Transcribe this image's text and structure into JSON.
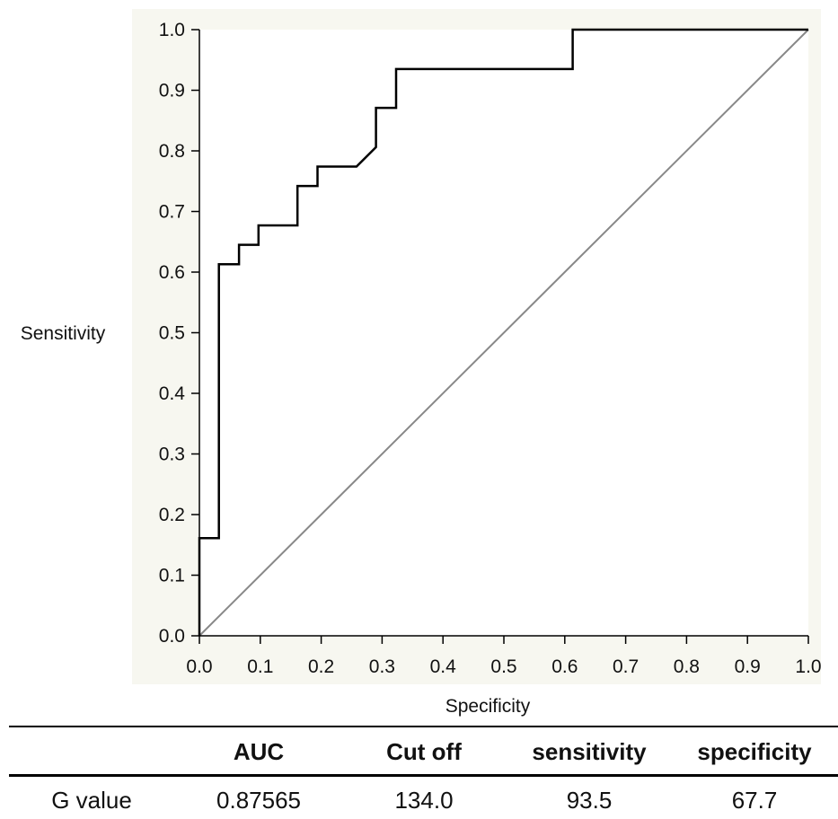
{
  "chart_data": {
    "type": "line",
    "title": "",
    "xlabel": "Specificity",
    "ylabel": "Sensitivity",
    "xlim": [
      0.0,
      1.0
    ],
    "ylim": [
      0.0,
      1.0
    ],
    "x_ticks": [
      "0.0",
      "0.1",
      "0.2",
      "0.3",
      "0.4",
      "0.5",
      "0.6",
      "0.7",
      "0.8",
      "0.9",
      "1.0"
    ],
    "y_ticks": [
      "0.0",
      "0.1",
      "0.2",
      "0.3",
      "0.4",
      "0.5",
      "0.6",
      "0.7",
      "0.8",
      "0.9",
      "1.0"
    ],
    "grid": false,
    "legend": "none",
    "series": [
      {
        "style": "step",
        "color": "#000000",
        "x": [
          0.0,
          0.0,
          0.032,
          0.032,
          0.065,
          0.065,
          0.097,
          0.097,
          0.161,
          0.161,
          0.194,
          0.194,
          0.258,
          0.29,
          0.29,
          0.323,
          0.323,
          0.613,
          0.613,
          1.0
        ],
        "y": [
          0.0,
          0.161,
          0.161,
          0.613,
          0.613,
          0.645,
          0.645,
          0.677,
          0.677,
          0.742,
          0.742,
          0.774,
          0.774,
          0.806,
          0.871,
          0.871,
          0.935,
          0.935,
          1.0,
          1.0
        ]
      },
      {
        "style": "reference",
        "color": "#888888",
        "x": [
          0.0,
          1.0
        ],
        "y": [
          0.0,
          1.0
        ]
      }
    ],
    "plot_background": "#f7f7f0"
  },
  "table": {
    "headers": [
      "",
      "AUC",
      "Cut off",
      "sensitivity",
      "specificity"
    ],
    "rows": [
      [
        "G value",
        "0.87565",
        "134.0",
        "93.5",
        "67.7"
      ]
    ]
  }
}
